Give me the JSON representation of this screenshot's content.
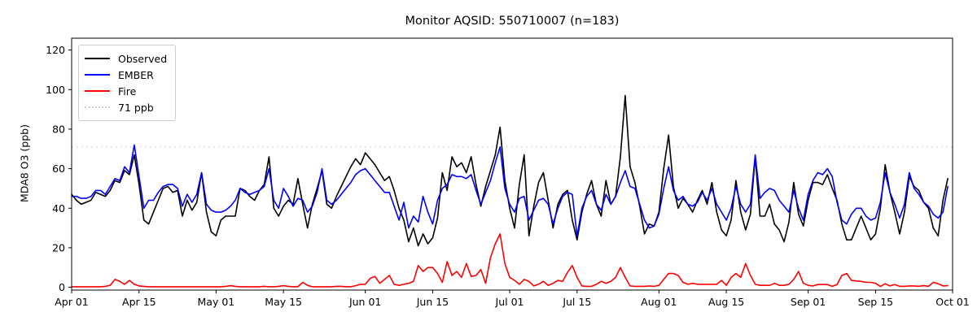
{
  "chart_data": {
    "type": "line",
    "title": "Monitor AQSID: 550710007 (n=183)",
    "ylabel": "MDA8 O3 (ppb)",
    "xlabel": "",
    "n_points": 183,
    "x_start": "Apr 01",
    "x_end": "Sep 30",
    "ylim": [
      -1.4,
      126
    ],
    "yticks": [
      0,
      20,
      40,
      60,
      80,
      100,
      120
    ],
    "x_ticks": [
      {
        "label": "Apr 01",
        "day_index": 0
      },
      {
        "label": "Apr 15",
        "day_index": 14
      },
      {
        "label": "May 01",
        "day_index": 30
      },
      {
        "label": "May 15",
        "day_index": 44
      },
      {
        "label": "Jun 01",
        "day_index": 61
      },
      {
        "label": "Jun 15",
        "day_index": 75
      },
      {
        "label": "Jul 01",
        "day_index": 91
      },
      {
        "label": "Jul 15",
        "day_index": 105
      },
      {
        "label": "Aug 01",
        "day_index": 122
      },
      {
        "label": "Aug 15",
        "day_index": 136
      },
      {
        "label": "Sep 01",
        "day_index": 153
      },
      {
        "label": "Sep 15",
        "day_index": 167
      },
      {
        "label": "Oct 01",
        "day_index": 183
      }
    ],
    "reference_line": {
      "value": 71,
      "label": "71 ppb",
      "color": "#c9c9c9",
      "style": "dotted"
    },
    "legend": {
      "position": "upper-left",
      "entries": [
        {
          "label": "Observed",
          "color": "#000000",
          "style": "solid"
        },
        {
          "label": "EMBER",
          "color": "#0000ff",
          "style": "solid"
        },
        {
          "label": "Fire",
          "color": "#ff0000",
          "style": "solid"
        },
        {
          "label": "71 ppb",
          "color": "#c9c9c9",
          "style": "dotted"
        }
      ]
    },
    "series": [
      {
        "name": "Observed",
        "color": "#000000",
        "values": [
          47,
          44,
          42,
          43,
          44,
          48,
          47,
          46,
          49,
          54,
          53,
          59,
          57,
          67,
          52,
          34,
          32,
          38,
          44,
          50,
          51,
          48,
          49,
          36,
          44,
          39,
          43,
          58,
          38,
          28,
          26,
          34,
          36,
          36,
          36,
          50,
          49,
          46,
          44,
          49,
          52,
          66,
          40,
          36,
          41,
          44,
          42,
          55,
          42,
          30,
          42,
          50,
          59,
          42,
          40,
          46,
          51,
          56,
          61,
          65,
          62,
          68,
          65,
          62,
          58,
          54,
          56,
          49,
          40,
          34,
          23,
          30,
          21,
          27,
          22,
          25,
          35,
          58,
          49,
          66,
          61,
          63,
          58,
          66,
          52,
          41,
          51,
          59,
          67,
          81,
          54,
          40,
          30,
          52,
          67,
          26,
          41,
          53,
          58,
          44,
          30,
          42,
          47,
          49,
          34,
          24,
          38,
          47,
          54,
          42,
          36,
          54,
          42,
          46,
          66,
          97,
          61,
          53,
          41,
          27,
          32,
          31,
          38,
          60,
          77,
          51,
          40,
          45,
          42,
          38,
          44,
          49,
          42,
          53,
          38,
          29,
          26,
          34,
          54,
          38,
          29,
          37,
          66,
          36,
          36,
          42,
          32,
          29,
          23,
          33,
          53,
          37,
          31,
          44,
          53,
          53,
          52,
          57,
          50,
          44,
          32,
          24,
          24,
          30,
          36,
          30,
          24,
          27,
          40,
          62,
          48,
          38,
          27,
          38,
          56,
          51,
          49,
          43,
          40,
          30,
          26,
          44,
          55
        ]
      },
      {
        "name": "EMBER",
        "color": "#0000ff",
        "values": [
          46,
          46,
          45,
          45,
          46,
          49,
          49,
          47,
          51,
          55,
          54,
          61,
          58,
          72,
          56,
          40,
          44,
          44,
          48,
          51,
          52,
          52,
          50,
          41,
          47,
          43,
          47,
          58,
          42,
          39,
          38,
          38,
          39,
          41,
          44,
          50,
          48,
          47,
          48,
          49,
          51,
          60,
          44,
          40,
          50,
          46,
          41,
          45,
          44,
          38,
          41,
          48,
          60,
          44,
          42,
          44,
          47,
          50,
          53,
          57,
          59,
          60,
          57,
          54,
          51,
          48,
          48,
          41,
          34,
          43,
          30,
          36,
          33,
          46,
          38,
          32,
          44,
          50,
          52,
          57,
          56,
          56,
          55,
          57,
          49,
          42,
          48,
          54,
          63,
          71,
          50,
          42,
          38,
          45,
          46,
          34,
          39,
          44,
          45,
          42,
          32,
          40,
          46,
          48,
          47,
          26,
          40,
          46,
          49,
          42,
          39,
          47,
          42,
          46,
          53,
          59,
          51,
          50,
          42,
          34,
          30,
          31,
          37,
          50,
          61,
          49,
          44,
          46,
          42,
          41,
          43,
          48,
          44,
          50,
          42,
          38,
          34,
          40,
          51,
          42,
          38,
          42,
          67,
          45,
          48,
          50,
          49,
          44,
          41,
          38,
          49,
          40,
          34,
          47,
          54,
          58,
          57,
          60,
          56,
          43,
          34,
          32,
          37,
          40,
          40,
          36,
          34,
          35,
          43,
          58,
          48,
          42,
          35,
          42,
          58,
          50,
          47,
          43,
          41,
          37,
          35,
          38,
          51
        ]
      },
      {
        "name": "Fire",
        "color": "#ff0000",
        "values": [
          0.3,
          0.3,
          0.3,
          0.3,
          0.3,
          0.3,
          0.3,
          0.5,
          1,
          4,
          3,
          1.5,
          3.5,
          1.5,
          0.7,
          0.5,
          0.3,
          0.3,
          0.3,
          0.3,
          0.3,
          0.3,
          0.3,
          0.3,
          0.3,
          0.3,
          0.3,
          0.3,
          0.3,
          0.3,
          0.3,
          0.3,
          0.5,
          0.8,
          0.5,
          0.3,
          0.3,
          0.3,
          0.3,
          0.3,
          0.5,
          0.3,
          0.3,
          0.5,
          0.8,
          0.5,
          0.3,
          0.3,
          2.5,
          1,
          0.3,
          0.3,
          0.3,
          0.3,
          0.3,
          0.5,
          0.5,
          0.3,
          0.3,
          0.8,
          1.5,
          1.5,
          4.5,
          5.5,
          2,
          4,
          6,
          1.5,
          1,
          1.5,
          2,
          3,
          11,
          8,
          10,
          10,
          7,
          2.5,
          13,
          6,
          8,
          5,
          12,
          5.5,
          6,
          9,
          2,
          15,
          22,
          27,
          12,
          5,
          3.5,
          1.5,
          4,
          3,
          0.7,
          1.5,
          3,
          1,
          2,
          3.5,
          3,
          7.5,
          11,
          5,
          0.7,
          0.5,
          0.5,
          1.5,
          3,
          2,
          3,
          5,
          10,
          5,
          0.7,
          0.5,
          0.5,
          0.5,
          0.7,
          0.5,
          1,
          4,
          7,
          7,
          6,
          2.5,
          1.5,
          2,
          1.5,
          1.5,
          1.5,
          1.5,
          1.5,
          3.5,
          1,
          5,
          7,
          5,
          12,
          6,
          1.5,
          1,
          1,
          1,
          2,
          1,
          1,
          1.5,
          4,
          8,
          2,
          1,
          0.7,
          1.4,
          1.4,
          1.4,
          0.5,
          1.4,
          6,
          7,
          3.5,
          3.2,
          3,
          2.5,
          2.5,
          2,
          0.4,
          1.8,
          0.7,
          1.4,
          0.5,
          0.5,
          0.7,
          0.7,
          0.5,
          0.9,
          0.5,
          2.5,
          1.8,
          0.7,
          0.8
        ]
      }
    ],
    "layout": {
      "grid": false,
      "background": "#ffffff",
      "spine_color": "#000000"
    }
  }
}
